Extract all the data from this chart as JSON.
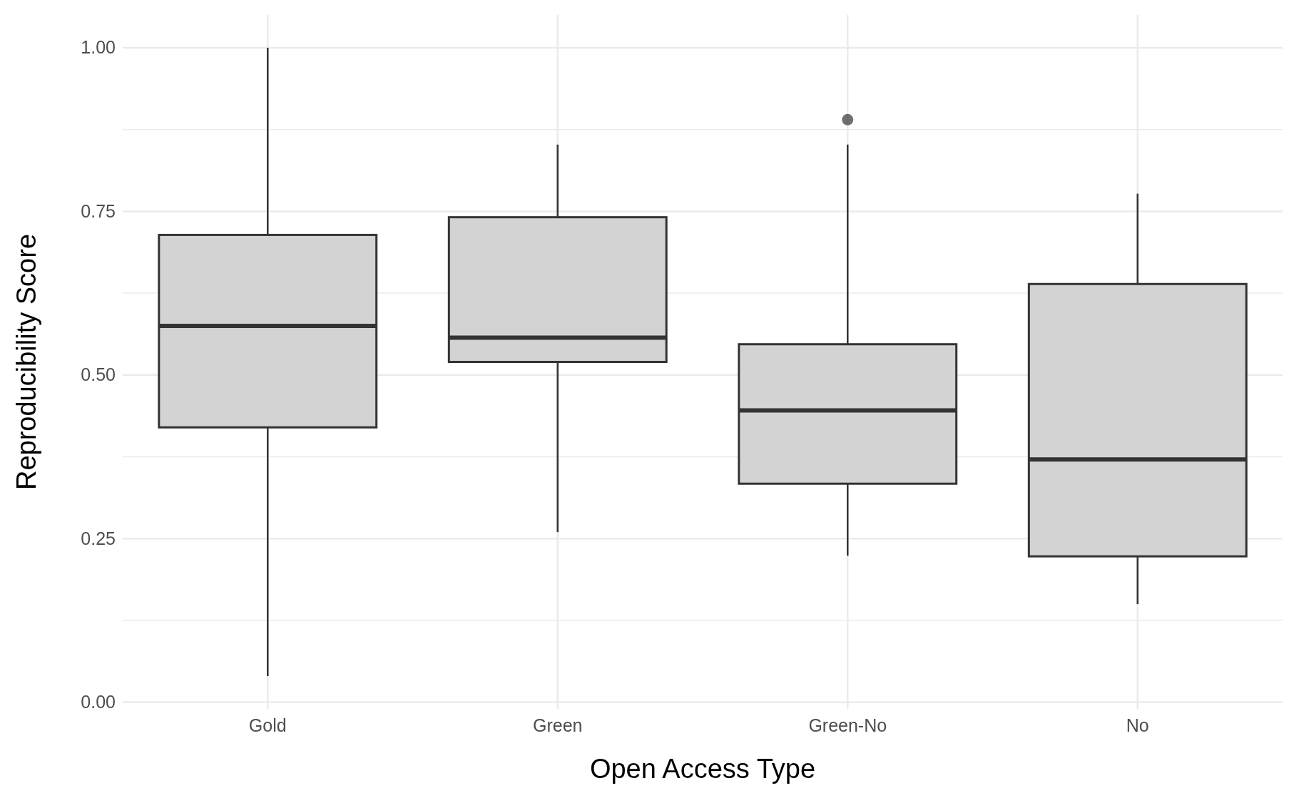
{
  "chart_data": {
    "type": "box",
    "xlabel": "Open Access Type",
    "ylabel": "Reproducibility Score",
    "categories": [
      "Gold",
      "Green",
      "Green-No",
      "No"
    ],
    "color": "#d3d3d3",
    "boxes": [
      {
        "low": 0.04,
        "q1": 0.42,
        "median": 0.575,
        "q3": 0.714,
        "high": 1.0
      },
      {
        "low": 0.26,
        "q1": 0.52,
        "median": 0.557,
        "q3": 0.741,
        "high": 0.852
      },
      {
        "low": 0.224,
        "q1": 0.334,
        "median": 0.446,
        "q3": 0.547,
        "high": 0.852,
        "outliers": [
          0.89
        ]
      },
      {
        "low": 0.15,
        "q1": 0.223,
        "median": 0.371,
        "q3": 0.639,
        "high": 0.777
      }
    ],
    "ylim": [
      -0.01,
      1.05
    ],
    "yticks": [
      {
        "value": 0,
        "label": "0.00"
      },
      {
        "value": 0.125,
        "label": null
      },
      {
        "value": 0.25,
        "label": "0.25"
      },
      {
        "value": 0.375,
        "label": null
      },
      {
        "value": 0.5,
        "label": "0.50"
      },
      {
        "value": 0.625,
        "label": null
      },
      {
        "value": 0.75,
        "label": "0.75"
      },
      {
        "value": 0.875,
        "label": null
      },
      {
        "value": 1,
        "label": "1.00"
      }
    ],
    "grid": true
  }
}
